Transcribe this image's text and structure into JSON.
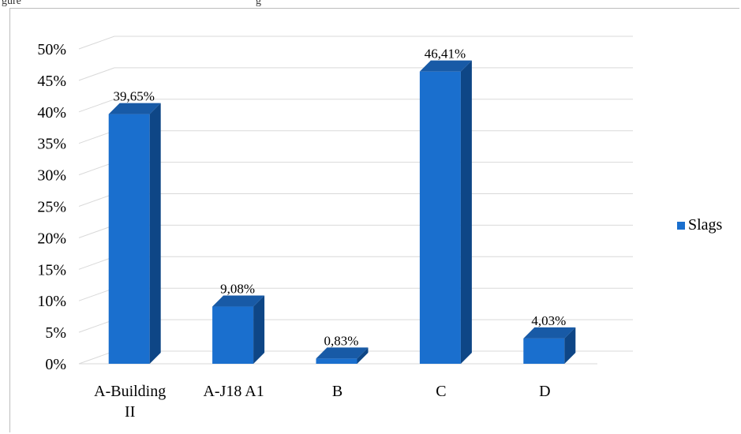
{
  "caption": "gure",
  "caption_tail": "g",
  "colors": {
    "front": "#1a6fce",
    "side": "#0e4686",
    "top": "#185aa6",
    "grid": "#d9d9d9"
  },
  "chart_data": {
    "type": "bar",
    "categories": [
      "A-Building II",
      "A-J18 A1",
      "B",
      "C",
      "D"
    ],
    "category_lines": [
      [
        "A-Building",
        "II"
      ],
      [
        "A-J18 A1"
      ],
      [
        "B"
      ],
      [
        "C"
      ],
      [
        "D"
      ]
    ],
    "series": [
      {
        "name": "Slags",
        "values": [
          39.65,
          9.08,
          0.83,
          46.41,
          4.03
        ]
      }
    ],
    "data_labels": [
      "39,65%",
      "9,08%",
      "0,83%",
      "46,41%",
      "4,03%"
    ],
    "y_ticks": [
      "0%",
      "5%",
      "10%",
      "15%",
      "20%",
      "25%",
      "30%",
      "35%",
      "40%",
      "45%",
      "50%"
    ],
    "ylim": [
      0,
      50
    ],
    "grid": true,
    "legend_position": "right",
    "three_d": true
  }
}
